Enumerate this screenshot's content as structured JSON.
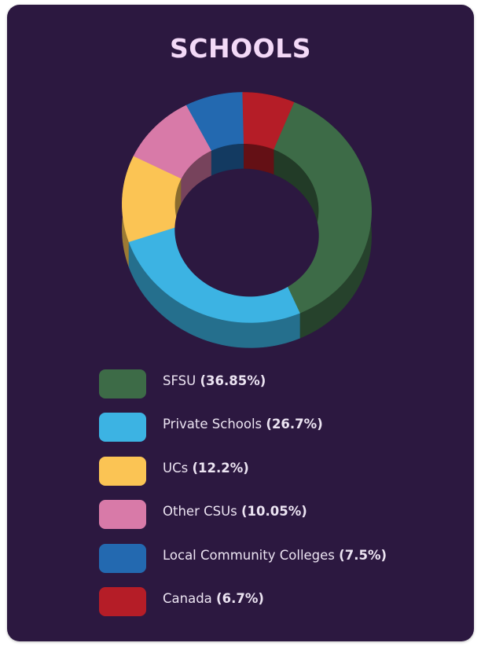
{
  "title": "SCHOOLS",
  "chart_data": {
    "type": "pie",
    "style": "3d-donut",
    "title": "SCHOOLS",
    "legend_position": "bottom",
    "categories": [
      "SFSU",
      "Private Schools",
      "UCs",
      "Other CSUs",
      "Local Community Colleges",
      "Canada"
    ],
    "values": [
      36.85,
      26.7,
      12.2,
      10.05,
      7.5,
      6.7
    ],
    "value_labels": [
      "(36.85%)",
      "(26.7%)",
      "(12.2%)",
      "(10.05%)",
      "(7.5%)",
      "(6.7%)"
    ],
    "colors": [
      "#3d6b47",
      "#3cb3e3",
      "#fbc454",
      "#d87aa8",
      "#2369b0",
      "#b51d27"
    ]
  }
}
